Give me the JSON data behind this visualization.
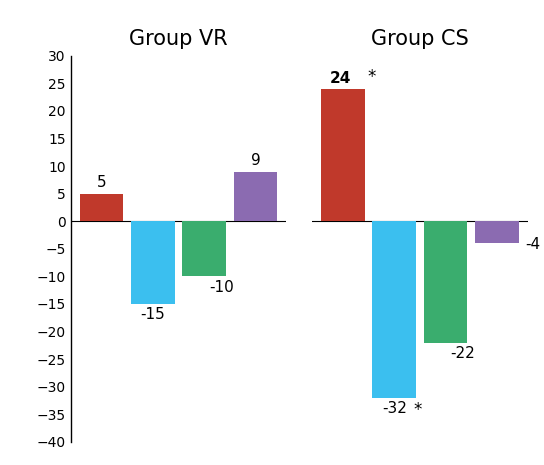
{
  "groups": [
    "Group VR",
    "Group CS"
  ],
  "group_vr_values": [
    5,
    -15,
    -10,
    9
  ],
  "group_cs_values": [
    24,
    -32,
    -22,
    -4
  ],
  "group_cs_stars": [
    true,
    true,
    false,
    true
  ],
  "bar_colors": [
    "#c0392b",
    "#3bbfef",
    "#3aad6e",
    "#8b6bb1"
  ],
  "ylim": [
    -40,
    30
  ],
  "yticks": [
    -40,
    -35,
    -30,
    -25,
    -20,
    -15,
    -10,
    -5,
    0,
    5,
    10,
    15,
    20,
    25,
    30
  ],
  "bar_width": 0.85,
  "title_fontsize": 15,
  "label_fontsize": 11,
  "background_color": "#ffffff"
}
